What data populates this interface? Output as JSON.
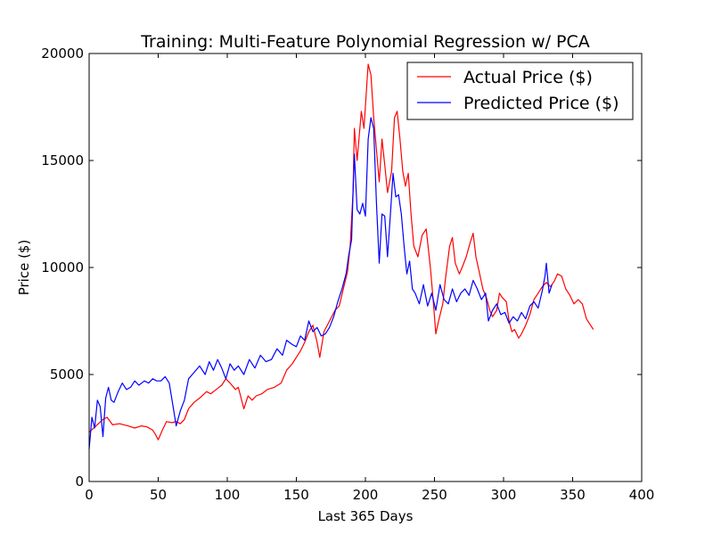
{
  "chart_data": {
    "type": "line",
    "title": "Training: Multi-Feature Polynomial Regression w/ PCA",
    "xlabel": "Last 365 Days",
    "ylabel": "Price ($)",
    "xlim": [
      0,
      400
    ],
    "ylim": [
      0,
      20000
    ],
    "xticks": [
      "0",
      "50",
      "100",
      "150",
      "200",
      "250",
      "300",
      "350",
      "400"
    ],
    "yticks": [
      "0",
      "5000",
      "10000",
      "15000",
      "20000"
    ],
    "grid": false,
    "legend_position": "top-right",
    "series": [
      {
        "name": "Actual Price ($)",
        "color": "#ff0000",
        "points": [
          [
            0,
            2300
          ],
          [
            5,
            2600
          ],
          [
            10,
            2900
          ],
          [
            13,
            3000
          ],
          [
            17,
            2650
          ],
          [
            22,
            2700
          ],
          [
            28,
            2600
          ],
          [
            33,
            2500
          ],
          [
            38,
            2600
          ],
          [
            42,
            2550
          ],
          [
            46,
            2400
          ],
          [
            48,
            2200
          ],
          [
            50,
            1950
          ],
          [
            53,
            2400
          ],
          [
            56,
            2800
          ],
          [
            60,
            2750
          ],
          [
            63,
            2800
          ],
          [
            66,
            2700
          ],
          [
            69,
            2900
          ],
          [
            72,
            3400
          ],
          [
            76,
            3700
          ],
          [
            80,
            3900
          ],
          [
            85,
            4200
          ],
          [
            88,
            4100
          ],
          [
            92,
            4300
          ],
          [
            96,
            4500
          ],
          [
            99,
            4800
          ],
          [
            102,
            4600
          ],
          [
            106,
            4300
          ],
          [
            108,
            4400
          ],
          [
            110,
            3900
          ],
          [
            112,
            3400
          ],
          [
            115,
            4000
          ],
          [
            118,
            3800
          ],
          [
            121,
            4000
          ],
          [
            125,
            4100
          ],
          [
            129,
            4300
          ],
          [
            134,
            4400
          ],
          [
            139,
            4600
          ],
          [
            143,
            5200
          ],
          [
            147,
            5500
          ],
          [
            150,
            5800
          ],
          [
            153,
            6100
          ],
          [
            156,
            6500
          ],
          [
            159,
            7000
          ],
          [
            162,
            7300
          ],
          [
            165,
            6500
          ],
          [
            167,
            5800
          ],
          [
            170,
            7000
          ],
          [
            174,
            7500
          ],
          [
            178,
            8000
          ],
          [
            181,
            8200
          ],
          [
            184,
            9000
          ],
          [
            187,
            9800
          ],
          [
            189,
            11000
          ],
          [
            191,
            13500
          ],
          [
            192,
            16500
          ],
          [
            194,
            15000
          ],
          [
            196,
            16500
          ],
          [
            197,
            17300
          ],
          [
            199,
            16500
          ],
          [
            201,
            18500
          ],
          [
            202,
            19500
          ],
          [
            204,
            19000
          ],
          [
            206,
            17000
          ],
          [
            208,
            15500
          ],
          [
            210,
            14000
          ],
          [
            212,
            16000
          ],
          [
            214,
            14800
          ],
          [
            216,
            13500
          ],
          [
            219,
            14500
          ],
          [
            221,
            17000
          ],
          [
            223,
            17300
          ],
          [
            225,
            16000
          ],
          [
            227,
            14500
          ],
          [
            229,
            13800
          ],
          [
            231,
            14400
          ],
          [
            233,
            12500
          ],
          [
            235,
            11000
          ],
          [
            238,
            10500
          ],
          [
            241,
            11500
          ],
          [
            244,
            11800
          ],
          [
            247,
            10000
          ],
          [
            249,
            8500
          ],
          [
            251,
            6900
          ],
          [
            253,
            7500
          ],
          [
            256,
            8300
          ],
          [
            258,
            9500
          ],
          [
            261,
            11000
          ],
          [
            263,
            11400
          ],
          [
            265,
            10200
          ],
          [
            268,
            9700
          ],
          [
            270,
            10000
          ],
          [
            273,
            10500
          ],
          [
            276,
            11200
          ],
          [
            278,
            11600
          ],
          [
            280,
            10500
          ],
          [
            283,
            9600
          ],
          [
            285,
            9000
          ],
          [
            288,
            8500
          ],
          [
            290,
            8000
          ],
          [
            292,
            7700
          ],
          [
            295,
            8000
          ],
          [
            297,
            8800
          ],
          [
            299,
            8600
          ],
          [
            302,
            8400
          ],
          [
            304,
            7500
          ],
          [
            306,
            7000
          ],
          [
            308,
            7100
          ],
          [
            311,
            6700
          ],
          [
            313,
            6900
          ],
          [
            316,
            7300
          ],
          [
            319,
            7800
          ],
          [
            322,
            8500
          ],
          [
            325,
            8800
          ],
          [
            328,
            9100
          ],
          [
            331,
            9300
          ],
          [
            334,
            9100
          ],
          [
            337,
            9400
          ],
          [
            339,
            9700
          ],
          [
            342,
            9600
          ],
          [
            345,
            9000
          ],
          [
            348,
            8700
          ],
          [
            351,
            8300
          ],
          [
            354,
            8500
          ],
          [
            357,
            8300
          ],
          [
            360,
            7600
          ],
          [
            362,
            7400
          ],
          [
            365,
            7100
          ]
        ]
      },
      {
        "name": "Predicted Price ($)",
        "color": "#0000ff",
        "points": [
          [
            0,
            1500
          ],
          [
            2,
            3000
          ],
          [
            4,
            2500
          ],
          [
            6,
            3800
          ],
          [
            8,
            3500
          ],
          [
            10,
            2100
          ],
          [
            12,
            3900
          ],
          [
            14,
            4400
          ],
          [
            16,
            3800
          ],
          [
            18,
            3700
          ],
          [
            21,
            4200
          ],
          [
            24,
            4600
          ],
          [
            27,
            4300
          ],
          [
            30,
            4400
          ],
          [
            33,
            4700
          ],
          [
            36,
            4500
          ],
          [
            40,
            4700
          ],
          [
            43,
            4600
          ],
          [
            46,
            4800
          ],
          [
            49,
            4700
          ],
          [
            52,
            4700
          ],
          [
            55,
            4900
          ],
          [
            58,
            4600
          ],
          [
            61,
            3400
          ],
          [
            63,
            2600
          ],
          [
            66,
            3300
          ],
          [
            69,
            3800
          ],
          [
            72,
            4800
          ],
          [
            76,
            5100
          ],
          [
            80,
            5400
          ],
          [
            84,
            5000
          ],
          [
            87,
            5600
          ],
          [
            90,
            5200
          ],
          [
            93,
            5700
          ],
          [
            96,
            5300
          ],
          [
            99,
            4800
          ],
          [
            102,
            5500
          ],
          [
            105,
            5200
          ],
          [
            108,
            5400
          ],
          [
            112,
            5000
          ],
          [
            116,
            5700
          ],
          [
            120,
            5300
          ],
          [
            124,
            5900
          ],
          [
            128,
            5600
          ],
          [
            132,
            5700
          ],
          [
            136,
            6200
          ],
          [
            140,
            5900
          ],
          [
            143,
            6600
          ],
          [
            147,
            6400
          ],
          [
            150,
            6300
          ],
          [
            153,
            6800
          ],
          [
            156,
            6600
          ],
          [
            159,
            7500
          ],
          [
            162,
            7000
          ],
          [
            165,
            7200
          ],
          [
            168,
            6800
          ],
          [
            171,
            6900
          ],
          [
            174,
            7200
          ],
          [
            177,
            7700
          ],
          [
            180,
            8400
          ],
          [
            183,
            9000
          ],
          [
            186,
            9700
          ],
          [
            188,
            10600
          ],
          [
            190,
            11300
          ],
          [
            191,
            13500
          ],
          [
            192,
            15300
          ],
          [
            194,
            12700
          ],
          [
            196,
            12500
          ],
          [
            198,
            13000
          ],
          [
            200,
            12400
          ],
          [
            202,
            16000
          ],
          [
            204,
            17000
          ],
          [
            206,
            16500
          ],
          [
            208,
            13000
          ],
          [
            210,
            10200
          ],
          [
            212,
            12500
          ],
          [
            214,
            12400
          ],
          [
            216,
            10500
          ],
          [
            218,
            12400
          ],
          [
            220,
            14400
          ],
          [
            222,
            13300
          ],
          [
            224,
            13400
          ],
          [
            226,
            12500
          ],
          [
            228,
            11000
          ],
          [
            230,
            9700
          ],
          [
            232,
            10300
          ],
          [
            234,
            9000
          ],
          [
            236,
            8800
          ],
          [
            239,
            8300
          ],
          [
            242,
            9200
          ],
          [
            245,
            8200
          ],
          [
            248,
            8800
          ],
          [
            251,
            8000
          ],
          [
            254,
            9200
          ],
          [
            257,
            8500
          ],
          [
            260,
            8300
          ],
          [
            263,
            9000
          ],
          [
            266,
            8400
          ],
          [
            269,
            8800
          ],
          [
            272,
            9000
          ],
          [
            275,
            8700
          ],
          [
            278,
            9400
          ],
          [
            281,
            9000
          ],
          [
            284,
            8500
          ],
          [
            287,
            8800
          ],
          [
            289,
            7500
          ],
          [
            292,
            8000
          ],
          [
            295,
            8300
          ],
          [
            298,
            7800
          ],
          [
            301,
            7900
          ],
          [
            304,
            7400
          ],
          [
            307,
            7700
          ],
          [
            310,
            7500
          ],
          [
            313,
            7900
          ],
          [
            316,
            7600
          ],
          [
            319,
            8200
          ],
          [
            322,
            8400
          ],
          [
            325,
            8100
          ],
          [
            328,
            8900
          ],
          [
            330,
            9600
          ],
          [
            331,
            10200
          ],
          [
            333,
            8800
          ],
          [
            335,
            9200
          ]
        ]
      }
    ]
  }
}
